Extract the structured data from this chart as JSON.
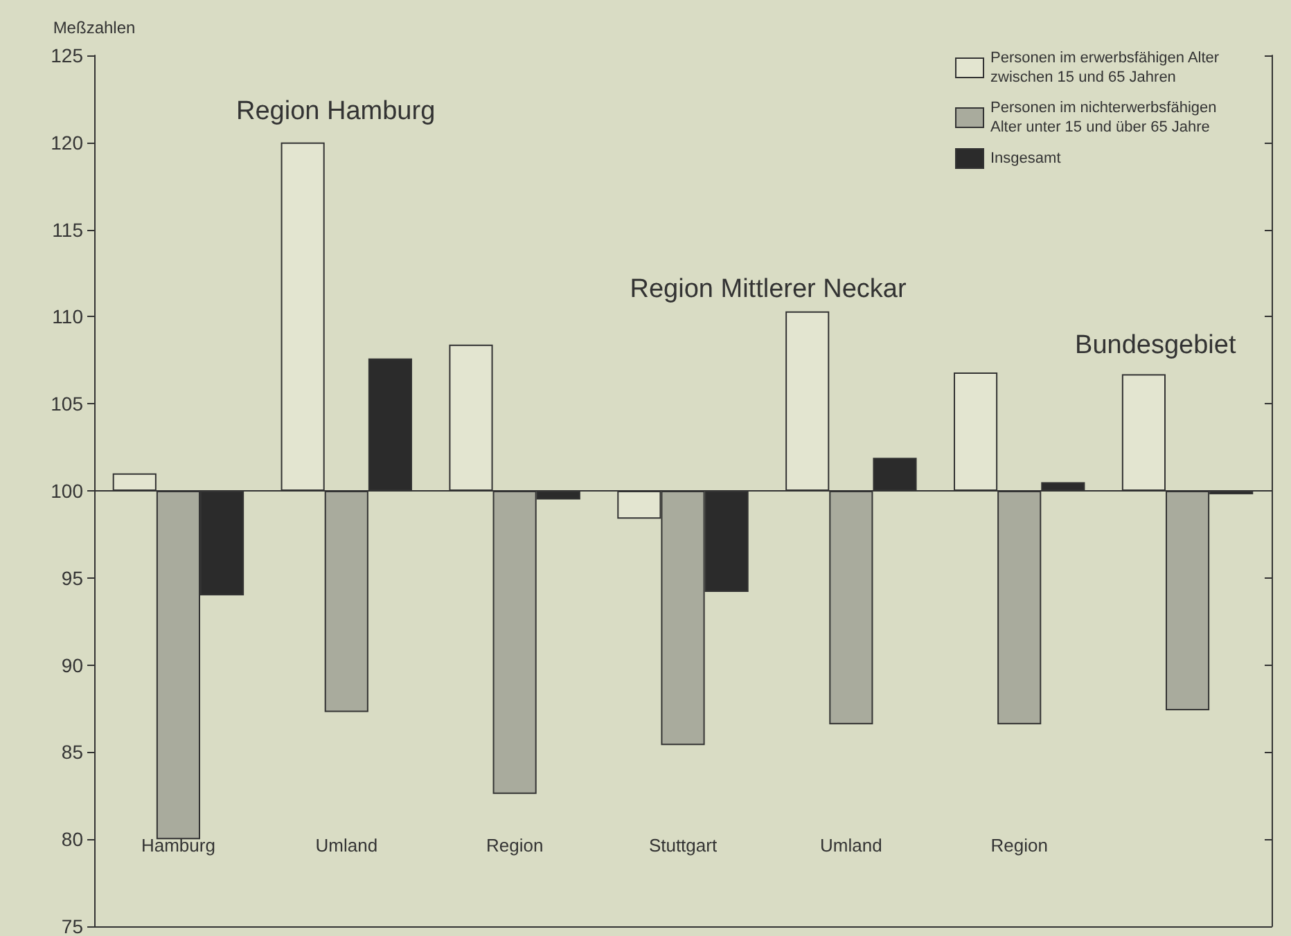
{
  "chart_data": {
    "type": "bar",
    "ylabel": "Meßzahlen",
    "categories": [
      "Hamburg",
      "Umland",
      "Region",
      "Stuttgart",
      "Umland",
      "Region",
      null
    ],
    "series": [
      {
        "name": "Personen im erwerbsfähigen Alter zwischen 15 und 65 Jahren",
        "color": "#e3e5d0",
        "base": [
          100,
          100,
          100,
          100,
          100,
          100,
          100
        ],
        "values": [
          1.0,
          20.0,
          8.4,
          -1.6,
          10.3,
          6.8,
          6.7
        ]
      },
      {
        "name": "Personen im nichterwerbsfähigen Alter unter 15 und über 65 Jahre",
        "color": "#a9ab9d",
        "base": [
          100,
          100,
          100,
          100,
          100,
          100,
          100
        ],
        "values": [
          -20.0,
          -12.7,
          -17.4,
          -14.6,
          -13.4,
          -13.4,
          -12.6
        ]
      },
      {
        "name": "Insgesamt",
        "color": "#2b2b2b",
        "base": [
          100,
          100,
          100,
          100,
          100,
          100,
          100
        ],
        "values": [
          -6.0,
          7.6,
          -0.5,
          -5.8,
          1.9,
          0.5,
          -0.2
        ]
      }
    ],
    "ylim": [
      75,
      125
    ],
    "yticks": [
      75,
      80,
      85,
      90,
      95,
      100,
      105,
      110,
      115,
      120,
      125
    ],
    "annotations": [
      "Region Hamburg",
      "Region Mittlerer Neckar",
      "Bundesgebiet"
    ],
    "ref_lines": [
      {
        "axis": "y",
        "value": 100,
        "color": "#333333"
      }
    ],
    "grid": false,
    "legend": "top right"
  }
}
